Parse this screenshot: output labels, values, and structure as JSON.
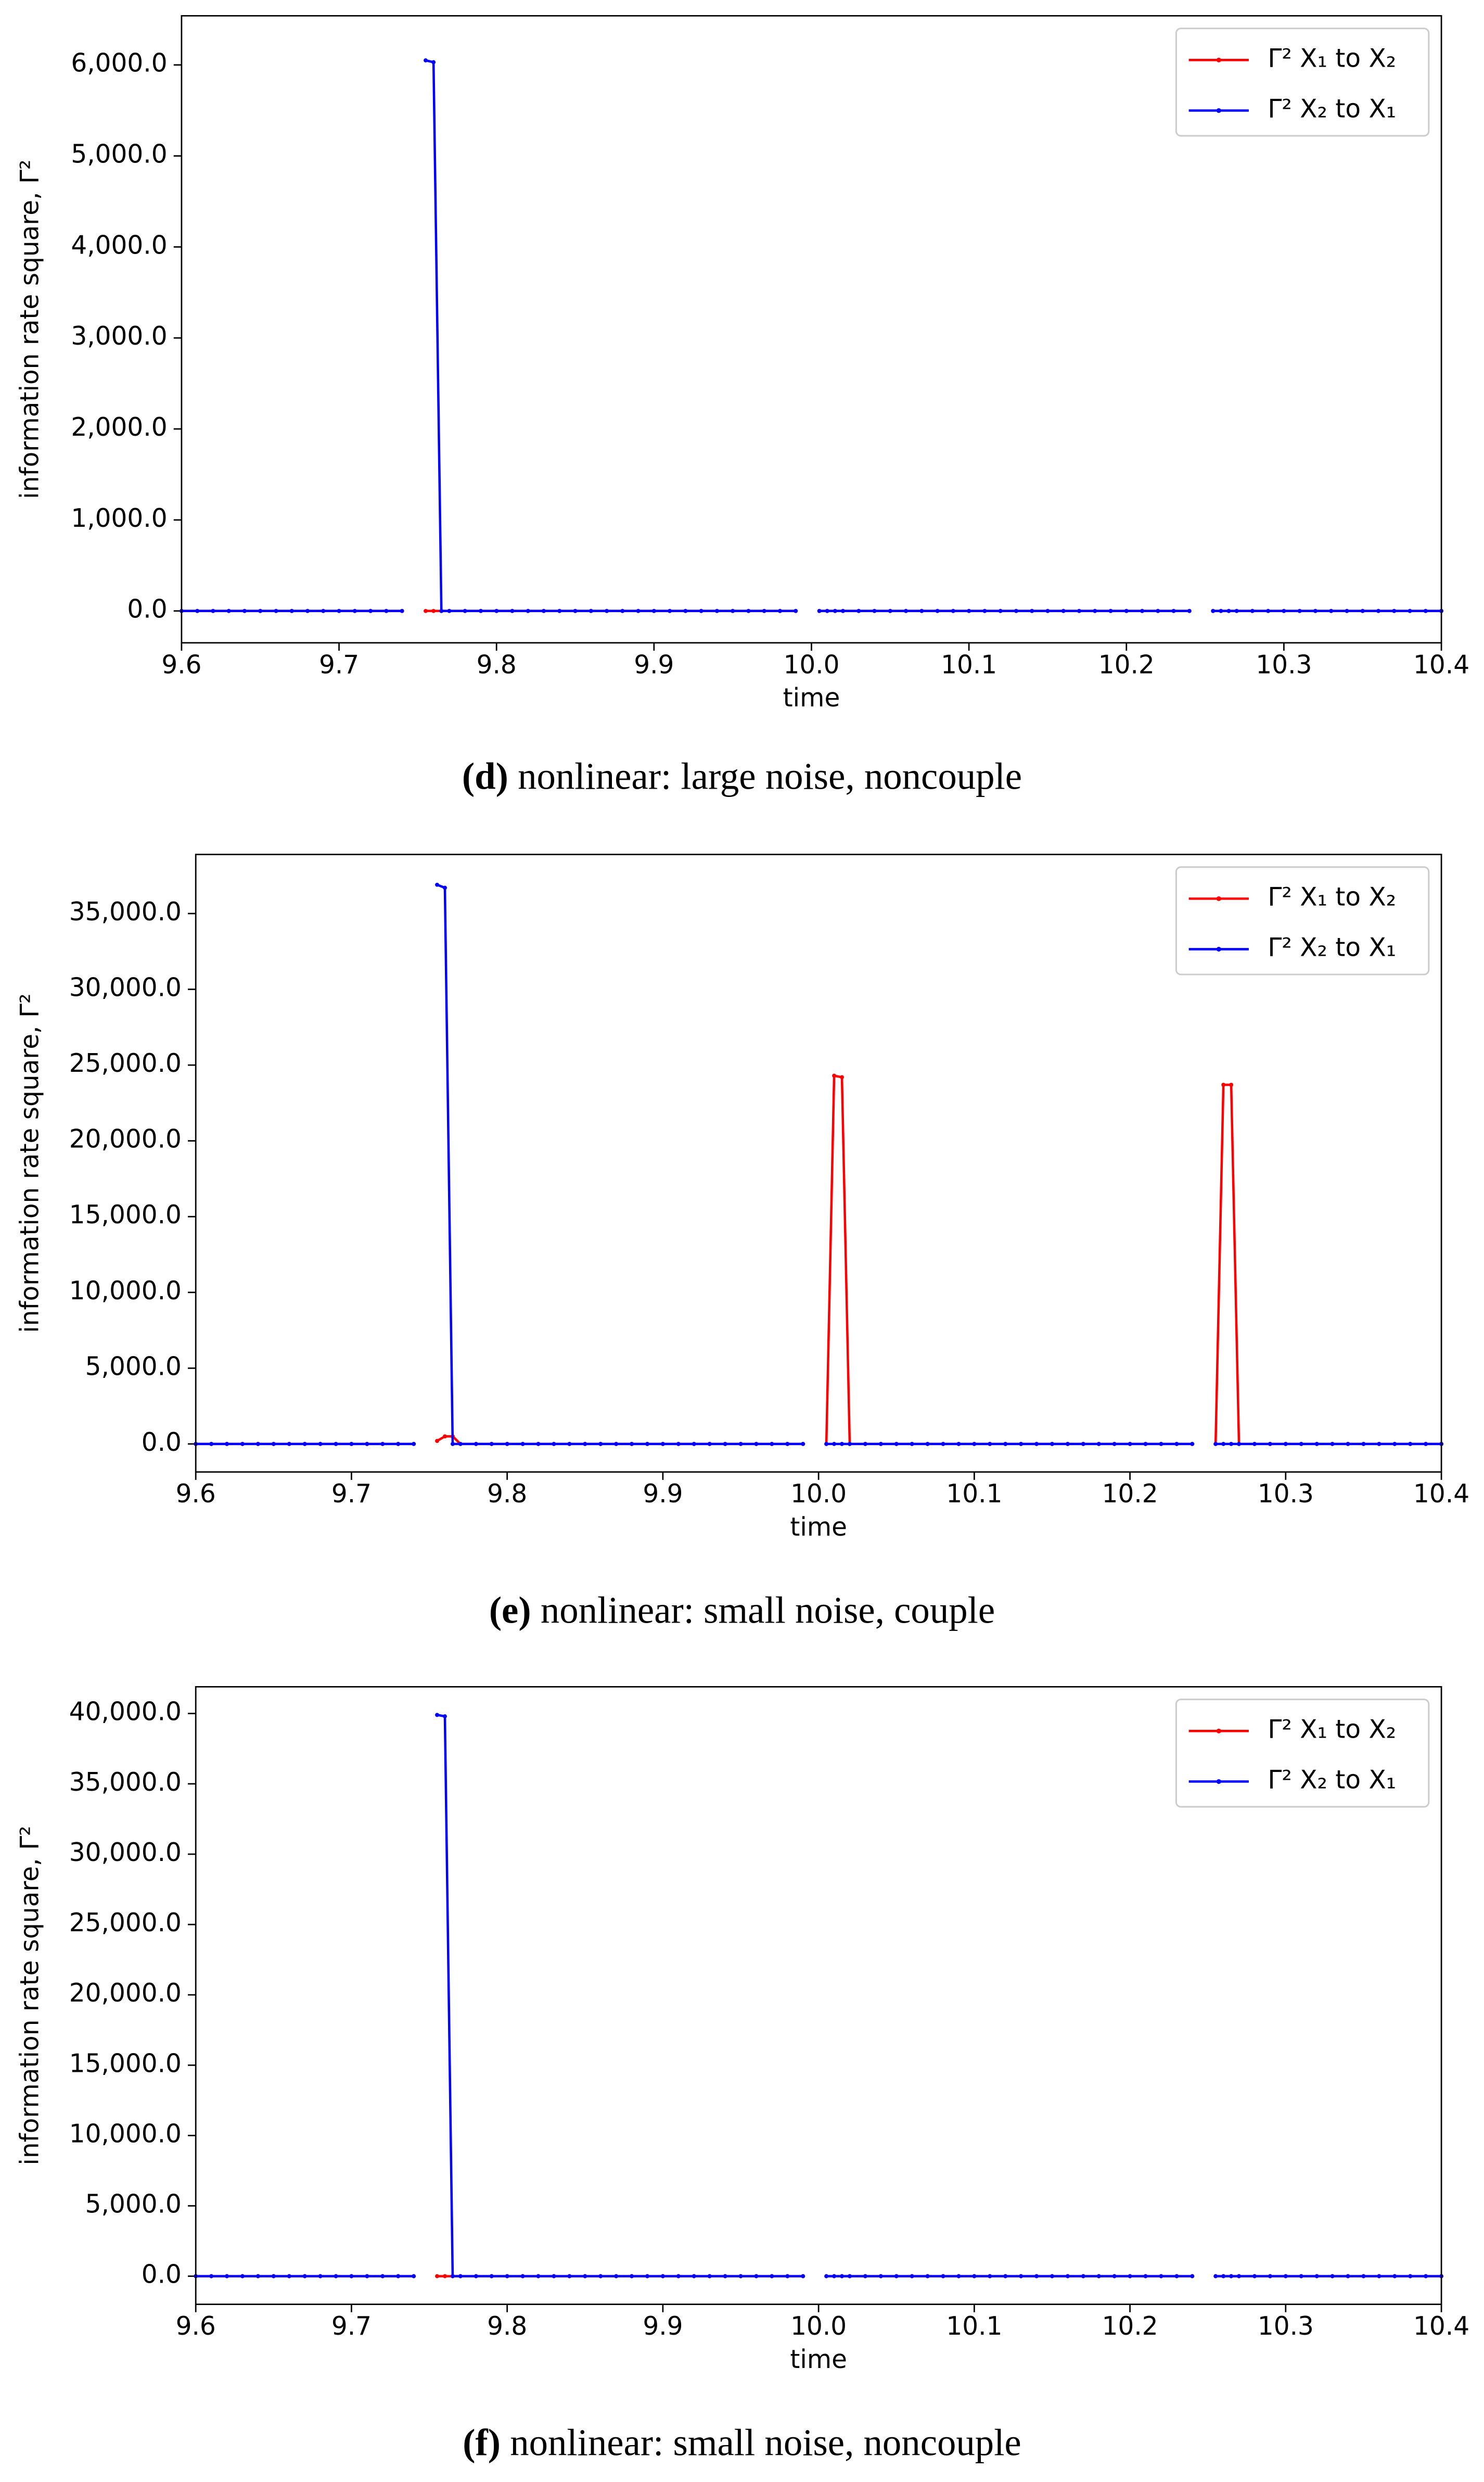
{
  "chart_data": [
    {
      "type": "line",
      "caption_label": "(d)",
      "caption": "nonlinear: large noise, noncouple",
      "xlabel": "time",
      "ylabel": "information rate square, Γ²",
      "legend": "upper right",
      "x": [
        9.6,
        9.61,
        9.62,
        9.63,
        9.64,
        9.65,
        9.66,
        9.67,
        9.68,
        9.69,
        9.7,
        9.71,
        9.72,
        9.73,
        9.74,
        9.75,
        9.755,
        9.76,
        9.765,
        9.77,
        9.78,
        9.79,
        9.8,
        9.81,
        9.82,
        9.83,
        9.84,
        9.85,
        9.86,
        9.87,
        9.88,
        9.89,
        9.9,
        9.91,
        9.92,
        9.93,
        9.94,
        9.95,
        9.96,
        9.97,
        9.98,
        9.99,
        10.0,
        10.005,
        10.01,
        10.015,
        10.02,
        10.03,
        10.04,
        10.05,
        10.06,
        10.07,
        10.08,
        10.09,
        10.1,
        10.11,
        10.12,
        10.13,
        10.14,
        10.15,
        10.16,
        10.17,
        10.18,
        10.19,
        10.2,
        10.21,
        10.22,
        10.23,
        10.24,
        10.25,
        10.255,
        10.26,
        10.265,
        10.27,
        10.28,
        10.29,
        10.3,
        10.31,
        10.32,
        10.33,
        10.34,
        10.35,
        10.36,
        10.37,
        10.38,
        10.39,
        10.4
      ],
      "xlim": [
        9.6,
        10.4
      ],
      "xticks": [
        9.6,
        9.7,
        9.8,
        9.9,
        {
          "value": 10,
          "label": "10.0"
        },
        10.1,
        10.2,
        10.3,
        10.4
      ],
      "ylim": [
        -350,
        6540
      ],
      "yticks": [
        {
          "value": 0,
          "label": "0.0"
        },
        {
          "value": 1000,
          "label": "1,000.0"
        },
        {
          "value": 2000,
          "label": "2,000.0"
        },
        {
          "value": 3000,
          "label": "3,000.0"
        },
        {
          "value": 4000,
          "label": "4,000.0"
        },
        {
          "value": 5000,
          "label": "5,000.0"
        },
        {
          "value": 6000,
          "label": "6,000.0"
        }
      ],
      "series": [
        {
          "name": "Γ² X₁ to X₂",
          "color": "#ff0000",
          "values": [
            0,
            0,
            0,
            0,
            0,
            0,
            0,
            0,
            0,
            0,
            0,
            0,
            0,
            0,
            0,
            null,
            0,
            0,
            0,
            0,
            0,
            0,
            0,
            0,
            0,
            0,
            0,
            0,
            0,
            0,
            0,
            0,
            0,
            0,
            0,
            0,
            0,
            0,
            0,
            0,
            0,
            0,
            null,
            0,
            0,
            0,
            0,
            0,
            0,
            0,
            0,
            0,
            0,
            0,
            0,
            0,
            0,
            0,
            0,
            0,
            0,
            0,
            0,
            0,
            0,
            0,
            0,
            0,
            0,
            null,
            0,
            0,
            0,
            0,
            0,
            0,
            0,
            0,
            0,
            0,
            0,
            0,
            0,
            0,
            0,
            0,
            0
          ]
        },
        {
          "name": "Γ² X₂ to X₁",
          "color": "#0000ff",
          "values": [
            0,
            0,
            0,
            0,
            0,
            0,
            0,
            0,
            0,
            0,
            0,
            0,
            0,
            0,
            0,
            null,
            6050,
            6030,
            0,
            0,
            0,
            0,
            0,
            0,
            0,
            0,
            0,
            0,
            0,
            0,
            0,
            0,
            0,
            0,
            0,
            0,
            0,
            0,
            0,
            0,
            0,
            0,
            null,
            0,
            0,
            0,
            0,
            0,
            0,
            0,
            0,
            0,
            0,
            0,
            0,
            0,
            0,
            0,
            0,
            0,
            0,
            0,
            0,
            0,
            0,
            0,
            0,
            0,
            0,
            null,
            0,
            0,
            0,
            0,
            0,
            0,
            0,
            0,
            0,
            0,
            0,
            0,
            0,
            0,
            0,
            0,
            0
          ]
        }
      ]
    },
    {
      "type": "line",
      "caption_label": "(e)",
      "caption": "nonlinear: small noise, couple",
      "xlabel": "time",
      "ylabel": "information rate square, Γ²",
      "legend": "upper right",
      "x": [
        9.6,
        9.61,
        9.62,
        9.63,
        9.64,
        9.65,
        9.66,
        9.67,
        9.68,
        9.69,
        9.7,
        9.71,
        9.72,
        9.73,
        9.74,
        9.75,
        9.755,
        9.76,
        9.765,
        9.77,
        9.78,
        9.79,
        9.8,
        9.81,
        9.82,
        9.83,
        9.84,
        9.85,
        9.86,
        9.87,
        9.88,
        9.89,
        9.9,
        9.91,
        9.92,
        9.93,
        9.94,
        9.95,
        9.96,
        9.97,
        9.98,
        9.99,
        10.0,
        10.005,
        10.01,
        10.015,
        10.02,
        10.03,
        10.04,
        10.05,
        10.06,
        10.07,
        10.08,
        10.09,
        10.1,
        10.11,
        10.12,
        10.13,
        10.14,
        10.15,
        10.16,
        10.17,
        10.18,
        10.19,
        10.2,
        10.21,
        10.22,
        10.23,
        10.24,
        10.25,
        10.255,
        10.26,
        10.265,
        10.27,
        10.28,
        10.29,
        10.3,
        10.31,
        10.32,
        10.33,
        10.34,
        10.35,
        10.36,
        10.37,
        10.38,
        10.39,
        10.4
      ],
      "xlim": [
        9.6,
        10.4
      ],
      "xticks": [
        9.6,
        9.7,
        9.8,
        9.9,
        {
          "value": 10,
          "label": "10.0"
        },
        10.1,
        10.2,
        10.3,
        10.4
      ],
      "ylim": [
        -1850,
        38900
      ],
      "yticks": [
        {
          "value": 0,
          "label": "0.0"
        },
        {
          "value": 5000,
          "label": "5,000.0"
        },
        {
          "value": 10000,
          "label": "10,000.0"
        },
        {
          "value": 15000,
          "label": "15,000.0"
        },
        {
          "value": 20000,
          "label": "20,000.0"
        },
        {
          "value": 25000,
          "label": "25,000.0"
        },
        {
          "value": 30000,
          "label": "30,000.0"
        },
        {
          "value": 35000,
          "label": "35,000.0"
        }
      ],
      "series": [
        {
          "name": "Γ² X₁ to X₂",
          "color": "#ff0000",
          "values": [
            0,
            0,
            0,
            0,
            0,
            0,
            0,
            0,
            0,
            0,
            0,
            0,
            0,
            0,
            0,
            null,
            200,
            500,
            500,
            0,
            0,
            0,
            0,
            0,
            0,
            0,
            0,
            0,
            0,
            0,
            0,
            0,
            0,
            0,
            0,
            0,
            0,
            0,
            0,
            0,
            0,
            0,
            null,
            0,
            24300,
            24200,
            0,
            0,
            0,
            0,
            0,
            0,
            0,
            0,
            0,
            0,
            0,
            0,
            0,
            0,
            0,
            0,
            0,
            0,
            0,
            0,
            0,
            0,
            0,
            null,
            0,
            23700,
            23700,
            0,
            0,
            0,
            0,
            0,
            0,
            0,
            0,
            0,
            0,
            0,
            0,
            0,
            0
          ]
        },
        {
          "name": "Γ² X₂ to X₁",
          "color": "#0000ff",
          "values": [
            0,
            0,
            0,
            0,
            0,
            0,
            0,
            0,
            0,
            0,
            0,
            0,
            0,
            0,
            0,
            null,
            36900,
            36700,
            0,
            0,
            0,
            0,
            0,
            0,
            0,
            0,
            0,
            0,
            0,
            0,
            0,
            0,
            0,
            0,
            0,
            0,
            0,
            0,
            0,
            0,
            0,
            0,
            null,
            0,
            0,
            0,
            0,
            0,
            0,
            0,
            0,
            0,
            0,
            0,
            0,
            0,
            0,
            0,
            0,
            0,
            0,
            0,
            0,
            0,
            0,
            0,
            0,
            0,
            0,
            null,
            0,
            0,
            0,
            0,
            0,
            0,
            0,
            0,
            0,
            0,
            0,
            0,
            0,
            0,
            0,
            0,
            0
          ]
        }
      ]
    },
    {
      "type": "line",
      "caption_label": "(f)",
      "caption": "nonlinear: small noise, noncouple",
      "xlabel": "time",
      "ylabel": "information rate square, Γ²",
      "legend": "upper right",
      "x": [
        9.6,
        9.61,
        9.62,
        9.63,
        9.64,
        9.65,
        9.66,
        9.67,
        9.68,
        9.69,
        9.7,
        9.71,
        9.72,
        9.73,
        9.74,
        9.75,
        9.755,
        9.76,
        9.765,
        9.77,
        9.78,
        9.79,
        9.8,
        9.81,
        9.82,
        9.83,
        9.84,
        9.85,
        9.86,
        9.87,
        9.88,
        9.89,
        9.9,
        9.91,
        9.92,
        9.93,
        9.94,
        9.95,
        9.96,
        9.97,
        9.98,
        9.99,
        10.0,
        10.005,
        10.01,
        10.015,
        10.02,
        10.03,
        10.04,
        10.05,
        10.06,
        10.07,
        10.08,
        10.09,
        10.1,
        10.11,
        10.12,
        10.13,
        10.14,
        10.15,
        10.16,
        10.17,
        10.18,
        10.19,
        10.2,
        10.21,
        10.22,
        10.23,
        10.24,
        10.25,
        10.255,
        10.26,
        10.265,
        10.27,
        10.28,
        10.29,
        10.3,
        10.31,
        10.32,
        10.33,
        10.34,
        10.35,
        10.36,
        10.37,
        10.38,
        10.39,
        10.4
      ],
      "xlim": [
        9.6,
        10.4
      ],
      "xticks": [
        9.6,
        9.7,
        9.8,
        9.9,
        {
          "value": 10,
          "label": "10.0"
        },
        10.1,
        10.2,
        10.3,
        10.4
      ],
      "ylim": [
        -2000,
        41900
      ],
      "yticks": [
        {
          "value": 0,
          "label": "0.0"
        },
        {
          "value": 5000,
          "label": "5,000.0"
        },
        {
          "value": 10000,
          "label": "10,000.0"
        },
        {
          "value": 15000,
          "label": "15,000.0"
        },
        {
          "value": 20000,
          "label": "20,000.0"
        },
        {
          "value": 25000,
          "label": "25,000.0"
        },
        {
          "value": 30000,
          "label": "30,000.0"
        },
        {
          "value": 35000,
          "label": "35,000.0"
        },
        {
          "value": 40000,
          "label": "40,000.0"
        }
      ],
      "series": [
        {
          "name": "Γ² X₁ to X₂",
          "color": "#ff0000",
          "values": [
            0,
            0,
            0,
            0,
            0,
            0,
            0,
            0,
            0,
            0,
            0,
            0,
            0,
            0,
            0,
            null,
            0,
            0,
            0,
            0,
            0,
            0,
            0,
            0,
            0,
            0,
            0,
            0,
            0,
            0,
            0,
            0,
            0,
            0,
            0,
            0,
            0,
            0,
            0,
            0,
            0,
            0,
            null,
            0,
            0,
            0,
            0,
            0,
            0,
            0,
            0,
            0,
            0,
            0,
            0,
            0,
            0,
            0,
            0,
            0,
            0,
            0,
            0,
            0,
            0,
            0,
            0,
            0,
            0,
            null,
            0,
            0,
            0,
            0,
            0,
            0,
            0,
            0,
            0,
            0,
            0,
            0,
            0,
            0,
            0,
            0,
            0
          ]
        },
        {
          "name": "Γ² X₂ to X₁",
          "color": "#0000ff",
          "values": [
            0,
            0,
            0,
            0,
            0,
            0,
            0,
            0,
            0,
            0,
            0,
            0,
            0,
            0,
            0,
            null,
            39900,
            39800,
            0,
            0,
            0,
            0,
            0,
            0,
            0,
            0,
            0,
            0,
            0,
            0,
            0,
            0,
            0,
            0,
            0,
            0,
            0,
            0,
            0,
            0,
            0,
            0,
            null,
            0,
            0,
            0,
            0,
            0,
            0,
            0,
            0,
            0,
            0,
            0,
            0,
            0,
            0,
            0,
            0,
            0,
            0,
            0,
            0,
            0,
            0,
            0,
            0,
            0,
            0,
            null,
            0,
            0,
            0,
            0,
            0,
            0,
            0,
            0,
            0,
            0,
            0,
            0,
            0,
            0,
            0,
            0,
            0
          ]
        }
      ]
    }
  ]
}
